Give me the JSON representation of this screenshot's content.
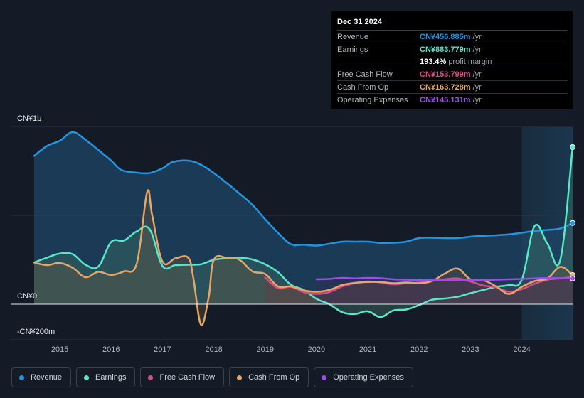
{
  "chart_data": {
    "type": "area",
    "y_unit": "CN¥ millions",
    "ylim": [
      -200,
      1000
    ],
    "xlim": [
      2014.5,
      2024.99
    ],
    "y_labels": [
      {
        "value": 1000,
        "text": "CN¥1b"
      },
      {
        "value": 0,
        "text": "CN¥0"
      },
      {
        "value": -200,
        "text": "-CN¥200m"
      }
    ],
    "x_ticks": [
      "2015",
      "2016",
      "2017",
      "2018",
      "2019",
      "2020",
      "2021",
      "2022",
      "2023",
      "2024"
    ],
    "highlight_from": 2024.0,
    "series": [
      {
        "name": "Revenue",
        "color": "#2394df",
        "points": [
          [
            2014.5,
            835
          ],
          [
            2014.75,
            890
          ],
          [
            2015.0,
            920
          ],
          [
            2015.25,
            968
          ],
          [
            2015.5,
            925
          ],
          [
            2015.75,
            868
          ],
          [
            2016.0,
            808
          ],
          [
            2016.2,
            755
          ],
          [
            2016.5,
            740
          ],
          [
            2016.75,
            738
          ],
          [
            2017.0,
            765
          ],
          [
            2017.2,
            800
          ],
          [
            2017.5,
            808
          ],
          [
            2017.75,
            785
          ],
          [
            2018.0,
            738
          ],
          [
            2018.25,
            682
          ],
          [
            2018.5,
            622
          ],
          [
            2018.75,
            560
          ],
          [
            2019.0,
            478
          ],
          [
            2019.25,
            402
          ],
          [
            2019.5,
            338
          ],
          [
            2019.75,
            335
          ],
          [
            2020.0,
            330
          ],
          [
            2020.25,
            340
          ],
          [
            2020.5,
            352
          ],
          [
            2020.75,
            352
          ],
          [
            2021.0,
            352
          ],
          [
            2021.25,
            345
          ],
          [
            2021.5,
            346
          ],
          [
            2021.75,
            352
          ],
          [
            2022.0,
            372
          ],
          [
            2022.25,
            374
          ],
          [
            2022.5,
            372
          ],
          [
            2022.75,
            372
          ],
          [
            2023.0,
            380
          ],
          [
            2023.25,
            385
          ],
          [
            2023.5,
            388
          ],
          [
            2023.75,
            393
          ],
          [
            2024.0,
            402
          ],
          [
            2024.25,
            412
          ],
          [
            2024.5,
            418
          ],
          [
            2024.75,
            426
          ],
          [
            2024.99,
            457
          ]
        ]
      },
      {
        "name": "Earnings",
        "color": "#58e7c9",
        "points": [
          [
            2014.5,
            235
          ],
          [
            2014.75,
            262
          ],
          [
            2015.0,
            285
          ],
          [
            2015.25,
            282
          ],
          [
            2015.5,
            222
          ],
          [
            2015.75,
            212
          ],
          [
            2016.0,
            350
          ],
          [
            2016.25,
            358
          ],
          [
            2016.5,
            410
          ],
          [
            2016.75,
            422
          ],
          [
            2017.0,
            215
          ],
          [
            2017.25,
            220
          ],
          [
            2017.5,
            222
          ],
          [
            2017.75,
            225
          ],
          [
            2018.0,
            250
          ],
          [
            2018.25,
            258
          ],
          [
            2018.5,
            262
          ],
          [
            2018.75,
            252
          ],
          [
            2019.0,
            225
          ],
          [
            2019.25,
            180
          ],
          [
            2019.5,
            110
          ],
          [
            2019.75,
            80
          ],
          [
            2020.0,
            30
          ],
          [
            2020.25,
            0
          ],
          [
            2020.5,
            -45
          ],
          [
            2020.75,
            -55
          ],
          [
            2021.0,
            -40
          ],
          [
            2021.25,
            -72
          ],
          [
            2021.5,
            -35
          ],
          [
            2021.75,
            -30
          ],
          [
            2022.0,
            -5
          ],
          [
            2022.25,
            25
          ],
          [
            2022.5,
            32
          ],
          [
            2022.75,
            42
          ],
          [
            2023.0,
            62
          ],
          [
            2023.25,
            80
          ],
          [
            2023.5,
            98
          ],
          [
            2023.75,
            108
          ],
          [
            2024.0,
            138
          ],
          [
            2024.25,
            440
          ],
          [
            2024.5,
            340
          ],
          [
            2024.75,
            250
          ],
          [
            2024.99,
            884
          ]
        ]
      },
      {
        "name": "Free Cash Flow",
        "color": "#d84d89",
        "points": [
          [
            2019.0,
            150
          ],
          [
            2019.25,
            90
          ],
          [
            2019.5,
            98
          ],
          [
            2019.75,
            68
          ],
          [
            2020.0,
            58
          ],
          [
            2020.25,
            68
          ],
          [
            2020.5,
            100
          ],
          [
            2020.75,
            118
          ],
          [
            2021.0,
            128
          ],
          [
            2021.25,
            122
          ],
          [
            2021.5,
            112
          ],
          [
            2021.75,
            118
          ],
          [
            2022.0,
            122
          ],
          [
            2022.25,
            132
          ],
          [
            2022.5,
            140
          ],
          [
            2022.75,
            145
          ],
          [
            2023.0,
            128
          ],
          [
            2023.25,
            105
          ],
          [
            2023.5,
            95
          ],
          [
            2023.75,
            70
          ],
          [
            2024.0,
            85
          ],
          [
            2024.25,
            115
          ],
          [
            2024.5,
            138
          ],
          [
            2024.75,
            145
          ],
          [
            2024.99,
            154
          ]
        ]
      },
      {
        "name": "Cash From Op",
        "color": "#e6a665",
        "points": [
          [
            2014.5,
            235
          ],
          [
            2014.75,
            220
          ],
          [
            2015.0,
            232
          ],
          [
            2015.25,
            205
          ],
          [
            2015.5,
            152
          ],
          [
            2015.75,
            182
          ],
          [
            2016.0,
            165
          ],
          [
            2016.25,
            185
          ],
          [
            2016.5,
            230
          ],
          [
            2016.7,
            630
          ],
          [
            2016.8,
            500
          ],
          [
            2017.0,
            240
          ],
          [
            2017.25,
            258
          ],
          [
            2017.5,
            262
          ],
          [
            2017.6,
            150
          ],
          [
            2017.75,
            -115
          ],
          [
            2017.9,
            40
          ],
          [
            2018.0,
            250
          ],
          [
            2018.25,
            262
          ],
          [
            2018.5,
            250
          ],
          [
            2018.75,
            185
          ],
          [
            2019.0,
            170
          ],
          [
            2019.25,
            100
          ],
          [
            2019.5,
            100
          ],
          [
            2019.75,
            78
          ],
          [
            2020.0,
            70
          ],
          [
            2020.25,
            80
          ],
          [
            2020.5,
            108
          ],
          [
            2020.75,
            120
          ],
          [
            2021.0,
            125
          ],
          [
            2021.25,
            125
          ],
          [
            2021.5,
            118
          ],
          [
            2021.75,
            122
          ],
          [
            2022.0,
            118
          ],
          [
            2022.25,
            130
          ],
          [
            2022.5,
            172
          ],
          [
            2022.75,
            200
          ],
          [
            2023.0,
            140
          ],
          [
            2023.25,
            135
          ],
          [
            2023.5,
            100
          ],
          [
            2023.75,
            58
          ],
          [
            2024.0,
            98
          ],
          [
            2024.25,
            130
          ],
          [
            2024.5,
            145
          ],
          [
            2024.75,
            210
          ],
          [
            2024.99,
            164
          ]
        ]
      },
      {
        "name": "Operating Expenses",
        "color": "#9e4bf0",
        "points": [
          [
            2020.0,
            140
          ],
          [
            2020.25,
            142
          ],
          [
            2020.5,
            148
          ],
          [
            2020.75,
            145
          ],
          [
            2021.0,
            148
          ],
          [
            2021.25,
            146
          ],
          [
            2021.5,
            140
          ],
          [
            2021.75,
            138
          ],
          [
            2022.0,
            135
          ],
          [
            2022.25,
            137
          ],
          [
            2022.5,
            135
          ],
          [
            2022.75,
            135
          ],
          [
            2023.0,
            137
          ],
          [
            2023.25,
            136
          ],
          [
            2023.5,
            138
          ],
          [
            2023.75,
            140
          ],
          [
            2024.0,
            142
          ],
          [
            2024.25,
            145
          ],
          [
            2024.5,
            147
          ],
          [
            2024.75,
            146
          ],
          [
            2024.99,
            145
          ]
        ]
      }
    ]
  },
  "tooltip": {
    "date": "Dec 31 2024",
    "rows": [
      {
        "label": "Revenue",
        "value": "CN¥456.885m",
        "unit": "/yr",
        "color": "#2394df"
      },
      {
        "label": "Earnings",
        "value": "CN¥883.779m",
        "unit": "/yr",
        "color": "#58e7c9"
      },
      {
        "label": "Free Cash Flow",
        "value": "CN¥153.799m",
        "unit": "/yr",
        "color": "#d84d89"
      },
      {
        "label": "Cash From Op",
        "value": "CN¥163.728m",
        "unit": "/yr",
        "color": "#e6a665"
      },
      {
        "label": "Operating Expenses",
        "value": "CN¥145.131m",
        "unit": "/yr",
        "color": "#9e4bf0"
      }
    ],
    "margin_value": "193.4%",
    "margin_text": "profit margin"
  },
  "legend": [
    {
      "label": "Revenue",
      "color": "#2394df"
    },
    {
      "label": "Earnings",
      "color": "#58e7c9"
    },
    {
      "label": "Free Cash Flow",
      "color": "#d84d89"
    },
    {
      "label": "Cash From Op",
      "color": "#e6a665"
    },
    {
      "label": "Operating Expenses",
      "color": "#9e4bf0"
    }
  ]
}
